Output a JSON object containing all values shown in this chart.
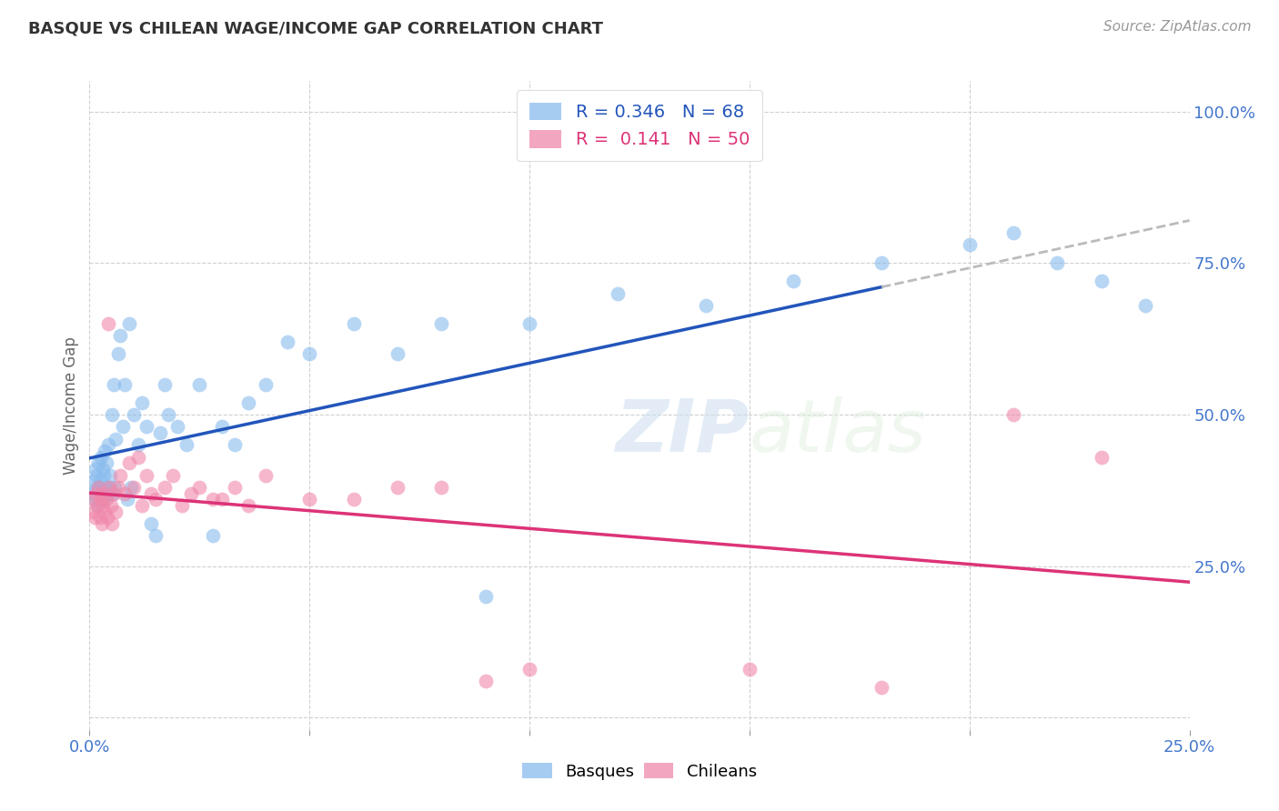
{
  "title": "BASQUE VS CHILEAN WAGE/INCOME GAP CORRELATION CHART",
  "source": "Source: ZipAtlas.com",
  "ylabel": "Wage/Income Gap",
  "watermark": "ZIPatlas",
  "background_color": "#ffffff",
  "plot_bg_color": "#ffffff",
  "grid_color": "#d0d0d0",
  "basque_color": "#88bbee",
  "chilean_color": "#f088aa",
  "basque_line_color": "#2255bb",
  "chilean_line_color": "#dd3377",
  "trendline_ext_color": "#bbbbbb",
  "basque_R": "0.346",
  "basque_N": "68",
  "chilean_R": "0.141",
  "chilean_N": "50",
  "xmin": 0.0,
  "xmax": 0.25,
  "ymin": -0.02,
  "ymax": 1.05,
  "basque_scatter_x": [
    0.0008,
    0.001,
    0.0012,
    0.0013,
    0.0015,
    0.0016,
    0.0018,
    0.002,
    0.0021,
    0.0023,
    0.0025,
    0.0027,
    0.0028,
    0.003,
    0.0032,
    0.0033,
    0.0035,
    0.0037,
    0.0038,
    0.004,
    0.0042,
    0.0045,
    0.0047,
    0.005,
    0.0053,
    0.0055,
    0.0058,
    0.006,
    0.0065,
    0.007,
    0.0075,
    0.008,
    0.0085,
    0.009,
    0.0095,
    0.01,
    0.011,
    0.012,
    0.013,
    0.014,
    0.015,
    0.016,
    0.017,
    0.018,
    0.02,
    0.022,
    0.025,
    0.028,
    0.03,
    0.033,
    0.036,
    0.04,
    0.045,
    0.05,
    0.06,
    0.07,
    0.08,
    0.09,
    0.1,
    0.12,
    0.14,
    0.16,
    0.18,
    0.2,
    0.21,
    0.22,
    0.23,
    0.24
  ],
  "basque_scatter_y": [
    0.37,
    0.39,
    0.36,
    0.41,
    0.38,
    0.4,
    0.35,
    0.42,
    0.38,
    0.36,
    0.39,
    0.43,
    0.37,
    0.41,
    0.36,
    0.4,
    0.44,
    0.38,
    0.42,
    0.37,
    0.45,
    0.38,
    0.4,
    0.5,
    0.37,
    0.55,
    0.38,
    0.46,
    0.6,
    0.63,
    0.48,
    0.55,
    0.36,
    0.65,
    0.38,
    0.5,
    0.45,
    0.52,
    0.48,
    0.32,
    0.3,
    0.47,
    0.55,
    0.5,
    0.48,
    0.45,
    0.55,
    0.3,
    0.48,
    0.45,
    0.52,
    0.55,
    0.62,
    0.6,
    0.65,
    0.6,
    0.65,
    0.2,
    0.65,
    0.7,
    0.68,
    0.72,
    0.75,
    0.78,
    0.8,
    0.75,
    0.72,
    0.68
  ],
  "chilean_scatter_x": [
    0.0008,
    0.001,
    0.0012,
    0.0015,
    0.0018,
    0.002,
    0.0023,
    0.0025,
    0.0028,
    0.003,
    0.0033,
    0.0035,
    0.0038,
    0.004,
    0.0043,
    0.0045,
    0.0048,
    0.005,
    0.0055,
    0.006,
    0.0065,
    0.007,
    0.008,
    0.009,
    0.01,
    0.011,
    0.012,
    0.013,
    0.014,
    0.015,
    0.017,
    0.019,
    0.021,
    0.023,
    0.025,
    0.028,
    0.03,
    0.033,
    0.036,
    0.04,
    0.05,
    0.06,
    0.07,
    0.08,
    0.09,
    0.1,
    0.15,
    0.18,
    0.21,
    0.23
  ],
  "chilean_scatter_y": [
    0.34,
    0.36,
    0.33,
    0.37,
    0.35,
    0.38,
    0.33,
    0.36,
    0.32,
    0.35,
    0.37,
    0.34,
    0.36,
    0.33,
    0.65,
    0.38,
    0.35,
    0.32,
    0.37,
    0.34,
    0.38,
    0.4,
    0.37,
    0.42,
    0.38,
    0.43,
    0.35,
    0.4,
    0.37,
    0.36,
    0.38,
    0.4,
    0.35,
    0.37,
    0.38,
    0.36,
    0.36,
    0.38,
    0.35,
    0.4,
    0.36,
    0.36,
    0.38,
    0.38,
    0.06,
    0.08,
    0.08,
    0.05,
    0.5,
    0.43
  ]
}
